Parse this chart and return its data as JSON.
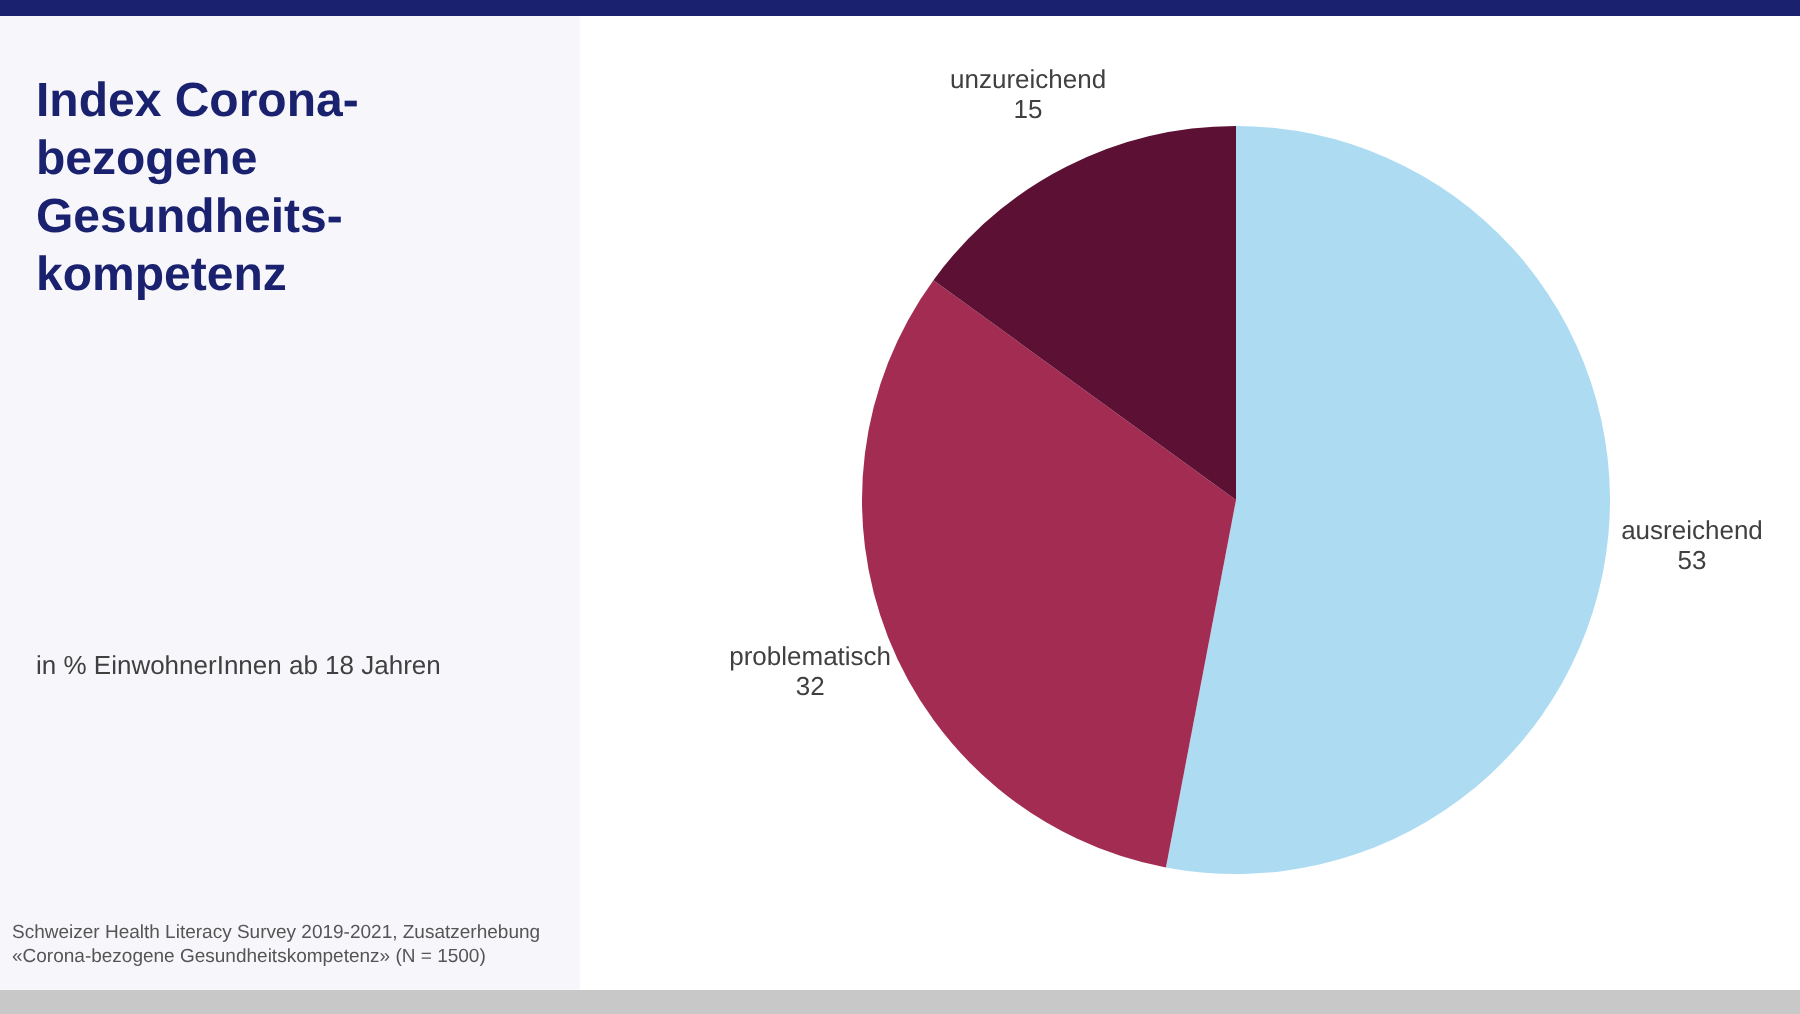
{
  "chart_data": {
    "type": "pie",
    "title": "Index Corona-bezogene Gesundheits-kompetenz",
    "subtitle": "in % EinwohnerInnen ab 18 Jahren",
    "categories": [
      "ausreichend",
      "problematisch",
      "unzureichend"
    ],
    "values": [
      53,
      32,
      15
    ],
    "colors": [
      "#addcf2",
      "#a32c53",
      "#5c1033"
    ],
    "data_labels": true,
    "legend": false,
    "annotations": [
      "Schweizer Health Literacy Survey 2019-2021, Zusatzerhebung «Corona-bezogene Gesundheitskompetenz» (N = 1500)"
    ]
  }
}
